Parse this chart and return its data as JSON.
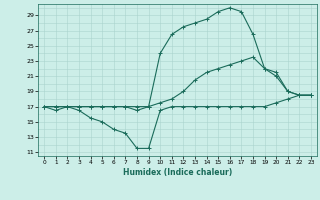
{
  "xlabel": "Humidex (Indice chaleur)",
  "bg_color": "#cceee8",
  "grid_color": "#aad4ce",
  "line_color": "#1a6b5a",
  "xlim": [
    -0.5,
    23.5
  ],
  "ylim": [
    10.5,
    30.5
  ],
  "xticks": [
    0,
    1,
    2,
    3,
    4,
    5,
    6,
    7,
    8,
    9,
    10,
    11,
    12,
    13,
    14,
    15,
    16,
    17,
    18,
    19,
    20,
    21,
    22,
    23
  ],
  "yticks": [
    11,
    13,
    15,
    17,
    19,
    21,
    23,
    25,
    27,
    29
  ],
  "line1_x": [
    0,
    1,
    2,
    3,
    4,
    5,
    6,
    7,
    8,
    9,
    10,
    11,
    12,
    13,
    14,
    15,
    16,
    17,
    18,
    19,
    20,
    21,
    22,
    23
  ],
  "line1_y": [
    17,
    16.5,
    17,
    16.5,
    15.5,
    15,
    14,
    13.5,
    11.5,
    11.5,
    16.5,
    17,
    17,
    17,
    17,
    17,
    17,
    17,
    17,
    17,
    17.5,
    18,
    18.5,
    18.5
  ],
  "line2_x": [
    0,
    1,
    2,
    3,
    4,
    5,
    6,
    7,
    8,
    9,
    10,
    11,
    12,
    13,
    14,
    15,
    16,
    17,
    18,
    19,
    20,
    21,
    22,
    23
  ],
  "line2_y": [
    17,
    17,
    17,
    17,
    17,
    17,
    17,
    17,
    17,
    17,
    17.5,
    18,
    19,
    20.5,
    21.5,
    22,
    22.5,
    23,
    23.5,
    22,
    21,
    19,
    18.5,
    18.5
  ],
  "line3_x": [
    0,
    1,
    2,
    3,
    4,
    5,
    6,
    7,
    8,
    9,
    10,
    11,
    12,
    13,
    14,
    15,
    16,
    17,
    18,
    19,
    20,
    21,
    22,
    23
  ],
  "line3_y": [
    17,
    17,
    17,
    17,
    17,
    17,
    17,
    17,
    16.5,
    17,
    24,
    26.5,
    27.5,
    28,
    28.5,
    29.5,
    30,
    29.5,
    26.5,
    22,
    21.5,
    19,
    18.5,
    18.5
  ]
}
